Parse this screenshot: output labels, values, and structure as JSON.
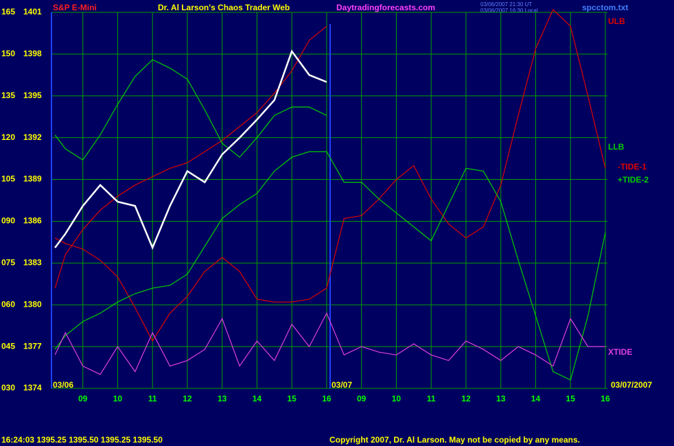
{
  "chart_data": {
    "type": "line",
    "title": "Dr. Al Larson's Chaos Trader Web",
    "subtitle": "S&P E-Mini",
    "site": "Daytradingforecasts.com",
    "file": "spcctom.txt",
    "timestamps": [
      "03/06/2007 21:30 UT",
      "03/06/2007 16:30 Local"
    ],
    "annotations": [
      "03/06",
      "03/07",
      "03/07/2007"
    ],
    "status": "16:24:03  1395.25 1395.50 1395.25 1395.50",
    "copyright": "Copyright 2007, Dr. Al Larson. May not be copied by any means.",
    "grid": true,
    "xlim": [
      0.1,
      16.06
    ],
    "xticks": [
      {
        "value": 1,
        "label": "09"
      },
      {
        "value": 2,
        "label": "10"
      },
      {
        "value": 3,
        "label": "11"
      },
      {
        "value": 4,
        "label": "12"
      },
      {
        "value": 5,
        "label": "13"
      },
      {
        "value": 6,
        "label": "14"
      },
      {
        "value": 7,
        "label": "15"
      },
      {
        "value": 8,
        "label": "16"
      },
      {
        "value": 9,
        "label": "09"
      },
      {
        "value": 10,
        "label": "10"
      },
      {
        "value": 11,
        "label": "11"
      },
      {
        "value": 12,
        "label": "12"
      },
      {
        "value": 13,
        "label": "13"
      },
      {
        "value": 14,
        "label": "14"
      },
      {
        "value": 15,
        "label": "15"
      },
      {
        "value": 16,
        "label": "16"
      }
    ],
    "ylim": [
      30,
      165
    ],
    "yticks": [
      {
        "value": 30,
        "label": "030"
      },
      {
        "value": 45,
        "label": "045"
      },
      {
        "value": 60,
        "label": "060"
      },
      {
        "value": 75,
        "label": "075"
      },
      {
        "value": 90,
        "label": "090"
      },
      105,
      120,
      135,
      150,
      165
    ],
    "y2lim": [
      1374,
      1401
    ],
    "y2ticks": [
      1374,
      1377,
      1380,
      1383,
      1386,
      1389,
      1392,
      1395,
      1398,
      1401
    ],
    "x": [
      0.2,
      0.5,
      1,
      1.5,
      2,
      2.5,
      3,
      3.5,
      4,
      4.5,
      5,
      5.5,
      6,
      6.5,
      7,
      7.5,
      8,
      8.5,
      9,
      9.5,
      10,
      10.5,
      11,
      11.5,
      12,
      12.5,
      13,
      13.5,
      14,
      14.5,
      15,
      15.5,
      16
    ],
    "series": [
      {
        "name": "ULB",
        "color": "#e00000",
        "values": [
          66,
          78,
          87,
          94,
          99,
          103,
          106,
          109,
          111,
          115,
          119,
          124,
          129,
          136,
          144,
          155,
          160,
          null,
          null,
          null,
          null,
          null,
          null,
          null,
          null,
          null,
          null,
          null,
          null,
          null,
          null,
          null,
          null
        ]
      },
      {
        "name": "LLB",
        "color": "#00d000",
        "values": [
          121,
          116,
          112,
          121,
          132,
          142,
          148,
          145,
          141,
          130,
          118,
          113,
          120,
          128,
          131,
          131,
          128,
          null,
          null,
          null,
          null,
          null,
          null,
          null,
          null,
          null,
          null,
          null,
          null,
          null,
          null,
          null,
          null
        ]
      },
      {
        "name": "-TIDE-1",
        "color": "#e00000",
        "values": [
          84,
          82,
          80,
          76,
          70,
          59,
          47,
          57,
          63,
          72,
          77,
          72,
          62,
          61,
          61,
          62,
          66,
          91,
          92,
          98,
          105,
          110,
          98,
          89,
          84,
          88,
          103,
          128,
          152,
          166,
          160,
          135,
          109
        ]
      },
      {
        "name": "+TIDE-2",
        "color": "#00d000",
        "values": [
          44,
          49,
          54,
          57,
          61,
          64,
          66,
          67,
          71,
          81,
          91,
          96,
          100,
          108,
          113,
          115,
          115,
          104,
          104,
          98,
          93,
          88,
          83,
          96,
          109,
          108,
          97,
          76,
          56,
          36,
          33,
          56,
          86
        ]
      },
      {
        "name": "XTIDE",
        "color": "#e040e0",
        "values": [
          42,
          50,
          38,
          35,
          45,
          36,
          50,
          38,
          40,
          44,
          55,
          38,
          47,
          40,
          53,
          45,
          57,
          42,
          45,
          43,
          42,
          46,
          42,
          40,
          47,
          44,
          40,
          45,
          42,
          38,
          55,
          45,
          45
        ]
      },
      {
        "name": "S&P E-Mini",
        "color": "#ffffff",
        "axis": "y2",
        "values": [
          1384.1,
          1385.1,
          1387.1,
          1388.6,
          1387.4,
          1387.1,
          1384.1,
          1387.1,
          1389.6,
          1388.8,
          1390.8,
          1392.0,
          1393.3,
          1394.7,
          1398.2,
          1396.5,
          1396.0,
          null,
          null,
          null,
          null,
          null,
          null,
          null,
          null,
          null,
          null,
          null,
          null,
          null,
          null,
          null,
          null
        ]
      }
    ]
  }
}
